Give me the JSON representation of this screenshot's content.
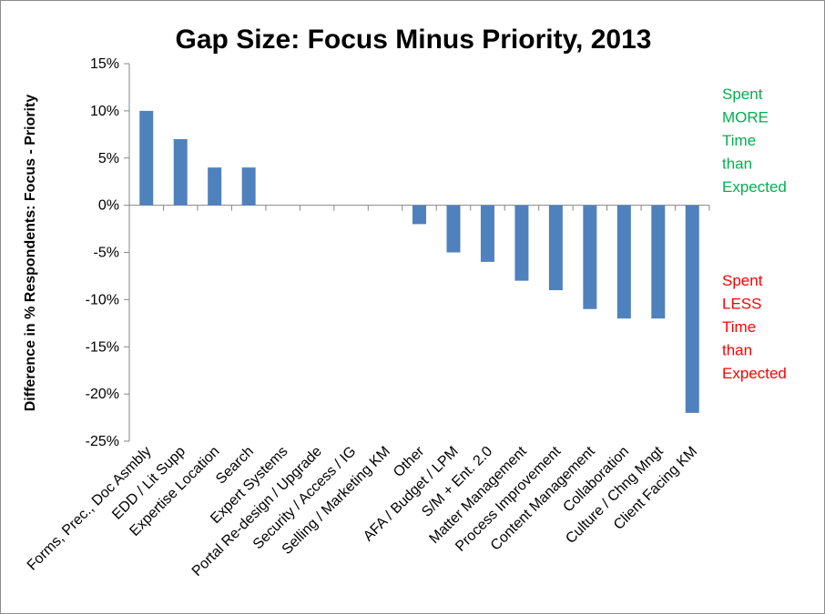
{
  "chart_data": {
    "type": "bar",
    "title": "Gap Size: Focus Minus Priority, 2013",
    "xlabel": "",
    "ylabel": "Difference in % Respondents: Focus - Priority",
    "ylim": [
      -25,
      15
    ],
    "ytick_values": [
      15,
      10,
      5,
      0,
      -5,
      -10,
      -15,
      -20,
      -25
    ],
    "ytick_labels": [
      "15%",
      "10%",
      "5%",
      "0%",
      "-5%",
      "-10%",
      "-15%",
      "-20%",
      "-25%"
    ],
    "grid": false,
    "categories": [
      "Forms, Prec., Doc Asmbly",
      "EDD / Lit Supp",
      "Expertise Location",
      "Search",
      "Expert Systems",
      "Portal Re-design / Upgrade",
      "Security / Access / IG",
      "Selling / Marketing KM",
      "Other",
      "AFA / Budget / LPM",
      "S/M + Ent. 2.0",
      "Matter Management",
      "Process Improvement",
      "Content Management",
      "Collaboration",
      "Culture / Chng Mngt",
      "Client Facing KM"
    ],
    "values": [
      10,
      7,
      4,
      4,
      0,
      0,
      0,
      0,
      -2,
      -5,
      -6,
      -8,
      -9,
      -11,
      -12,
      -12,
      -22
    ],
    "bar_color": "#4f81bd",
    "annotations": [
      {
        "lines": [
          "Spent",
          "MORE",
          "Time",
          "than",
          "Expected"
        ],
        "color": "#00b050"
      },
      {
        "lines": [
          "Spent",
          "LESS",
          "Time",
          "than",
          "Expected"
        ],
        "color": "#ff0000"
      }
    ]
  }
}
